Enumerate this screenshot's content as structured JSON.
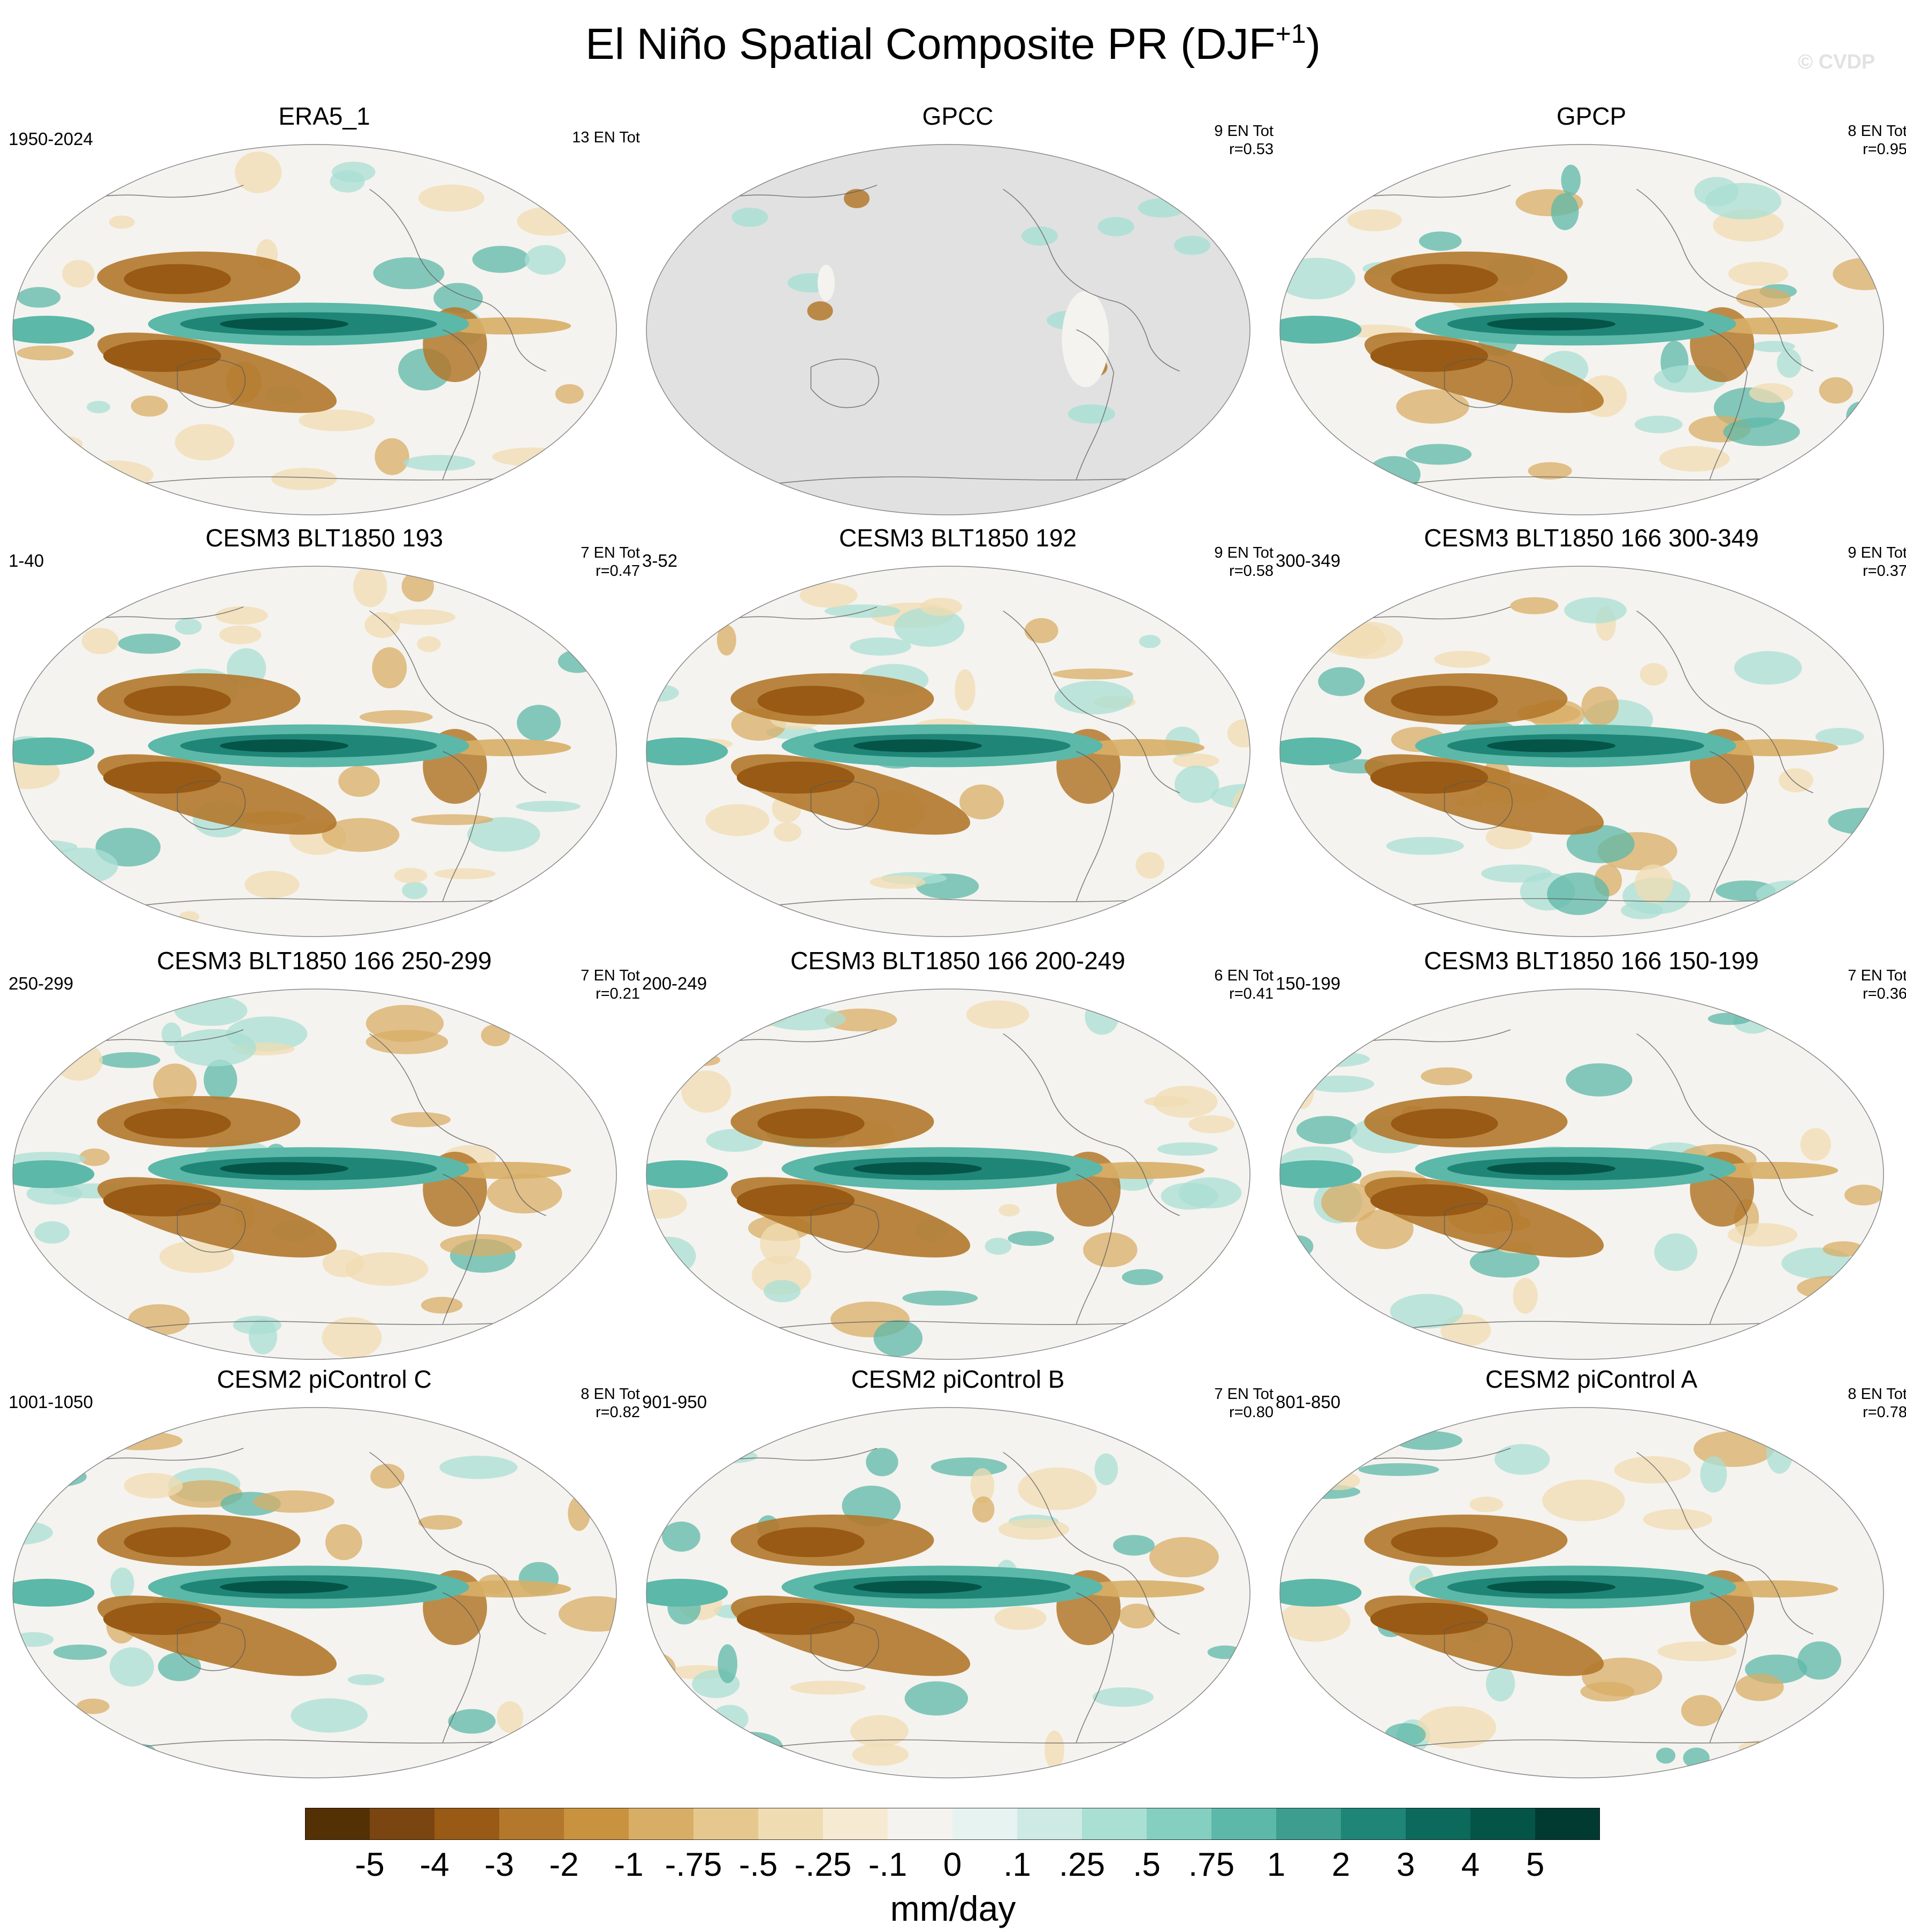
{
  "figure": {
    "title_main": "El Niño Spatial Composite PR (DJF",
    "title_sup": "+1",
    "title_close": ")",
    "watermark": "© CVDP"
  },
  "panels": [
    {
      "title": "ERA5_1",
      "years": "1950-2024",
      "en_tot": "13 EN Tot",
      "r": ""
    },
    {
      "title": "GPCC",
      "years": "",
      "en_tot": "9 EN Tot",
      "r": "r=0.53",
      "land_only": true
    },
    {
      "title": "GPCP",
      "years": "",
      "en_tot": "8 EN Tot",
      "r": "r=0.95"
    },
    {
      "title": "CESM3 BLT1850 193",
      "years": "1-40",
      "en_tot": "7 EN Tot",
      "r": "r=0.47"
    },
    {
      "title": "CESM3 BLT1850 192",
      "years": "3-52",
      "en_tot": "9 EN Tot",
      "r": "r=0.58"
    },
    {
      "title": "CESM3 BLT1850 166 300-349",
      "years": "300-349",
      "en_tot": "9 EN Tot",
      "r": "r=0.37"
    },
    {
      "title": "CESM3 BLT1850 166 250-299",
      "years": "250-299",
      "en_tot": "7 EN Tot",
      "r": "r=0.21"
    },
    {
      "title": "CESM3 BLT1850 166 200-249",
      "years": "200-249",
      "en_tot": "6 EN Tot",
      "r": "r=0.41"
    },
    {
      "title": "CESM3 BLT1850 166 150-199",
      "years": "150-199",
      "en_tot": "7 EN Tot",
      "r": "r=0.36"
    },
    {
      "title": "CESM2 piControl C",
      "years": "1001-1050",
      "en_tot": "8 EN Tot",
      "r": "r=0.82"
    },
    {
      "title": "CESM2 piControl B",
      "years": "901-950",
      "en_tot": "7 EN Tot",
      "r": "r=0.80"
    },
    {
      "title": "CESM2 piControl A",
      "years": "801-850",
      "en_tot": "8 EN Tot",
      "r": "r=0.78"
    }
  ],
  "colorbar": {
    "labels": [
      "-5",
      "-4",
      "-3",
      "-2",
      "-1",
      "-.75",
      "-.5",
      "-.25",
      "-.1",
      "0",
      ".1",
      ".25",
      ".5",
      ".75",
      "1",
      "2",
      "3",
      "4",
      "5"
    ],
    "colors": [
      "#543005",
      "#7a4510",
      "#985a14",
      "#b3782b",
      "#c8923f",
      "#d8ae66",
      "#e6c88e",
      "#f0dcb2",
      "#f6ebd2",
      "#f5f3ef",
      "#e7f3f1",
      "#cdeae4",
      "#aadfd4",
      "#84cfc0",
      "#5cb8a8",
      "#3d9e8f",
      "#1f8577",
      "#0c6a5c",
      "#045447",
      "#013a30"
    ],
    "units": "mm/day"
  }
}
